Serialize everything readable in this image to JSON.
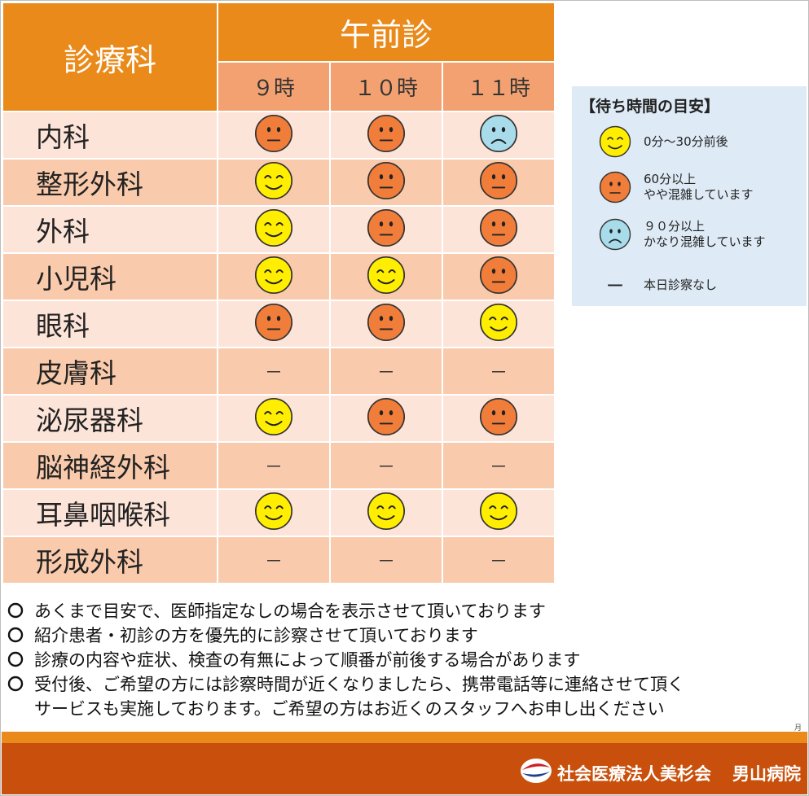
{
  "header": {
    "dept_label": "診療科",
    "session_label": "午前診",
    "times": [
      "９時",
      "１０時",
      "１１時"
    ]
  },
  "rows": [
    {
      "dept": "内科",
      "status": [
        "crowded",
        "crowded",
        "very-crowded"
      ]
    },
    {
      "dept": "整形外科",
      "status": [
        "short",
        "crowded",
        "crowded"
      ]
    },
    {
      "dept": "外科",
      "status": [
        "short",
        "crowded",
        "crowded"
      ]
    },
    {
      "dept": "小児科",
      "status": [
        "short",
        "short",
        "crowded"
      ]
    },
    {
      "dept": "眼科",
      "status": [
        "crowded",
        "crowded",
        "short"
      ]
    },
    {
      "dept": "皮膚科",
      "status": [
        "none",
        "none",
        "none"
      ]
    },
    {
      "dept": "泌尿器科",
      "status": [
        "short",
        "crowded",
        "crowded"
      ]
    },
    {
      "dept": "脳神経外科",
      "status": [
        "none",
        "none",
        "none"
      ]
    },
    {
      "dept": "耳鼻咽喉科",
      "status": [
        "short",
        "short",
        "short"
      ]
    },
    {
      "dept": "形成外科",
      "status": [
        "none",
        "none",
        "none"
      ]
    }
  ],
  "no_service_mark": "－",
  "legend": {
    "title": "【待ち時間の目安】",
    "items": [
      {
        "status": "short",
        "line1": "0分～30分前後",
        "line2": ""
      },
      {
        "status": "crowded",
        "line1": "60分以上",
        "line2": "やや混雑しています"
      },
      {
        "status": "very-crowded",
        "line1": "９０分以上",
        "line2": "かなり混雑しています"
      },
      {
        "status": "none",
        "mark": "ー",
        "line1": "本日診察なし",
        "line2": ""
      }
    ]
  },
  "notes": [
    "あくまで目安で、医師指定なしの場合を表示させて頂いております",
    "紹介患者・初診の方を優先的に診察させて頂いております",
    "診療の内容や症状、検査の有無によって順番が前後する場合があります",
    "受付後、ご希望の方には診察時間が近くなりましたら、携帯電話等に連絡させて頂く",
    "サービスも実施しております。ご希望の方はお近くのスタッフへお申し出ください"
  ],
  "tiny_mark": "月",
  "footer": {
    "org": "社会医療法人美杉会",
    "hospital": "男山病院"
  },
  "colors": {
    "header_orange": "#e98a1a",
    "time_header": "#f3a171",
    "row_light": "#fde4d9",
    "row_dark": "#f9cbac",
    "legend_bg": "#deeaf5",
    "footer_dark": "#c9500c",
    "face_short": "#ffee00",
    "face_crowded": "#f07d3a",
    "face_very_crowded": "#a8dceb"
  },
  "icons": {
    "short": "smiling-face-icon",
    "crowded": "neutral-face-icon",
    "very-crowded": "sad-face-icon"
  }
}
